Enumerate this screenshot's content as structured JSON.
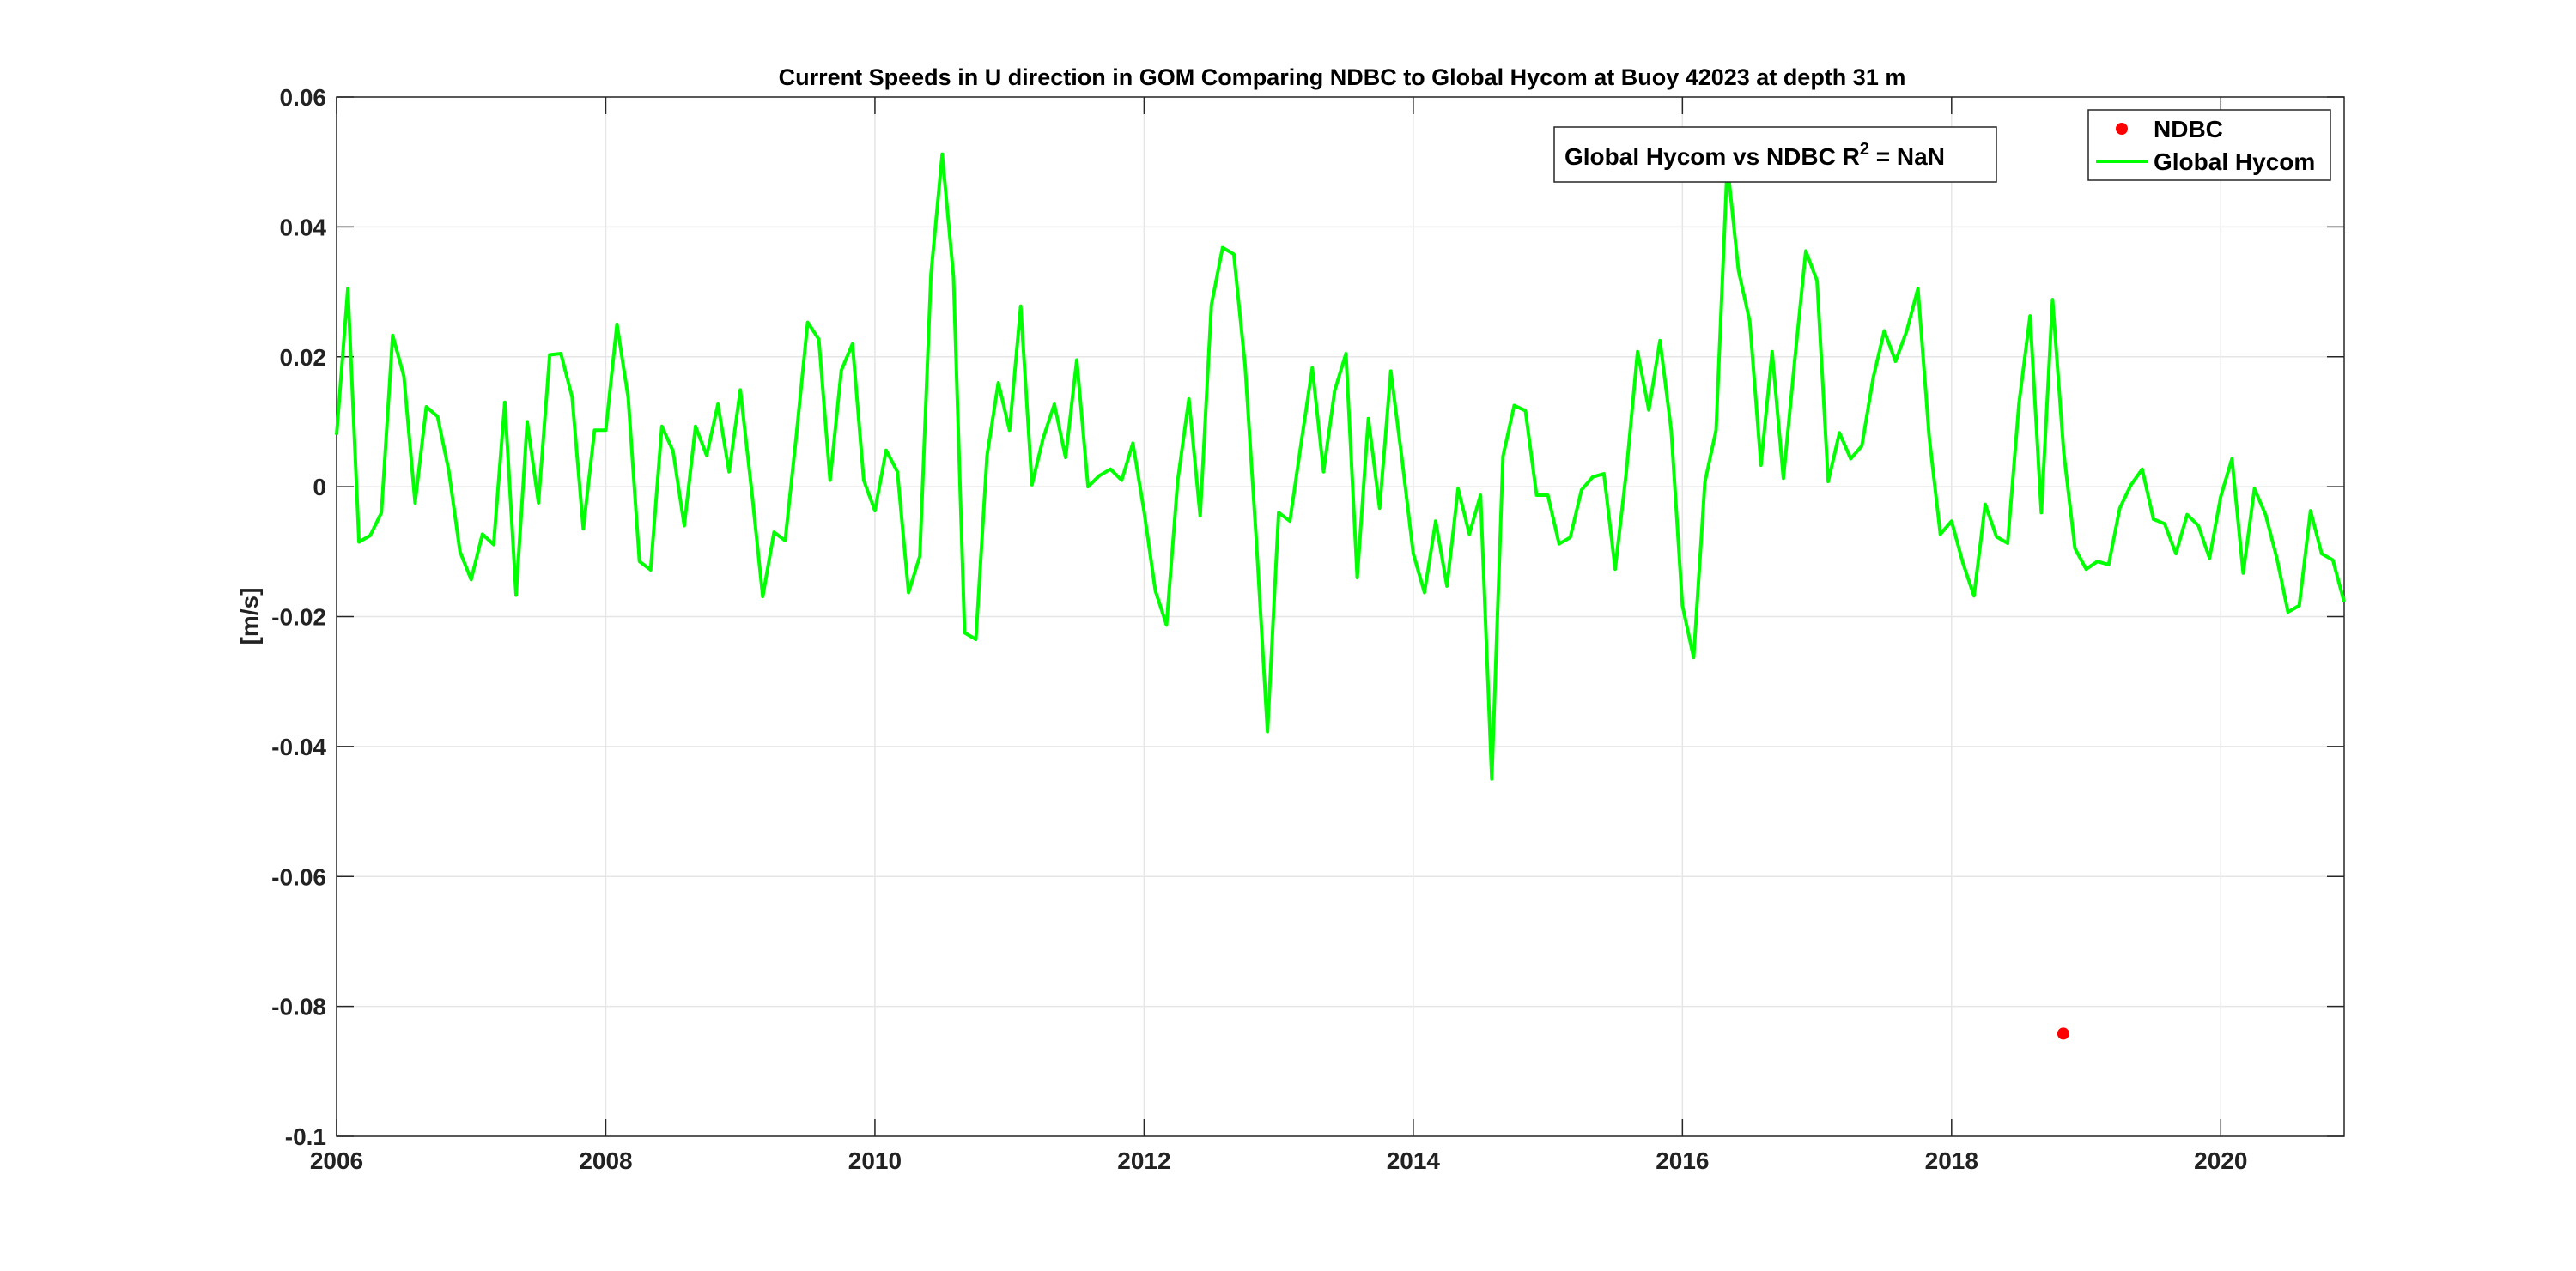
{
  "chart_data": {
    "type": "line",
    "title": "Current Speeds in U direction in GOM Comparing NDBC to Global Hycom at Buoy  42023  at depth  31 m",
    "xlabel": "",
    "ylabel": "[m/s]",
    "xlim": [
      2006,
      2020.917
    ],
    "ylim": [
      -0.1,
      0.06
    ],
    "grid": true,
    "x_ticks": [
      "2006",
      "2008",
      "2010",
      "2012",
      "2014",
      "2016",
      "2018",
      "2020"
    ],
    "y_ticks": [
      "-0.1",
      "-0.08",
      "-0.06",
      "-0.04",
      "-0.02",
      "0",
      "0.02",
      "0.04",
      "0.06"
    ],
    "legend_position": "top-right",
    "annotation": {
      "text": "Global Hycom vs NDBC R",
      "sup": "2",
      "suffix": " = NaN"
    },
    "series": [
      {
        "name": "NDBC",
        "type": "scatter",
        "color": "#ff0000",
        "points": [
          {
            "x": 2018.83,
            "y": -0.0842
          }
        ]
      },
      {
        "name": "Global Hycom",
        "type": "line",
        "color": "#00ff00",
        "start_year": 2006,
        "step": "monthly",
        "values": [
          0.008,
          0.0305,
          -0.0085,
          -0.0075,
          -0.004,
          0.0233,
          0.017,
          -0.0025,
          0.0123,
          0.0108,
          0.0025,
          -0.01,
          -0.0143,
          -0.0073,
          -0.0089,
          0.013,
          -0.0167,
          0.01,
          -0.0025,
          0.0203,
          0.0205,
          0.0138,
          -0.0065,
          0.0087,
          0.0087,
          0.025,
          0.0137,
          -0.0115,
          -0.0128,
          0.0093,
          0.0055,
          -0.006,
          0.0093,
          0.0048,
          0.0127,
          0.0023,
          0.0149,
          -0.0005,
          -0.0169,
          -0.007,
          -0.0083,
          0.008,
          0.0253,
          0.0227,
          0.001,
          0.0179,
          0.022,
          0.001,
          -0.0037,
          0.0056,
          0.0023,
          -0.0163,
          -0.0107,
          0.0327,
          0.0512,
          0.0324,
          -0.0225,
          -0.0235,
          0.0048,
          0.016,
          0.0087,
          0.0278,
          0.0003,
          0.0075,
          0.0127,
          0.0045,
          0.0195,
          0.0,
          0.0017,
          0.0027,
          0.001,
          0.0067,
          -0.0038,
          -0.016,
          -0.0213,
          0.001,
          0.0135,
          -0.0045,
          0.028,
          0.0368,
          0.0358,
          0.0187,
          -0.008,
          -0.0377,
          -0.004,
          -0.0053,
          0.0067,
          0.0183,
          0.0023,
          0.0148,
          0.0205,
          -0.014,
          0.0105,
          -0.0033,
          0.0178,
          0.0042,
          -0.0103,
          -0.0163,
          -0.0053,
          -0.0153,
          -0.0003,
          -0.0073,
          -0.0013,
          -0.045,
          0.0047,
          0.0125,
          0.0117,
          -0.0013,
          -0.0013,
          -0.0088,
          -0.0078,
          -0.0005,
          0.0015,
          0.002,
          -0.0127,
          0.0023,
          0.0208,
          0.0118,
          0.0225,
          0.0087,
          -0.0183,
          -0.0263,
          0.0007,
          0.0087,
          0.0497,
          0.0333,
          0.0255,
          0.0033,
          0.0208,
          0.0013,
          0.0193,
          0.0363,
          0.0317,
          0.0008,
          0.0083,
          0.0043,
          0.0063,
          0.0167,
          0.024,
          0.0193,
          0.024,
          0.0305,
          0.0077,
          -0.0073,
          -0.0053,
          -0.0117,
          -0.0168,
          -0.0027,
          -0.0077,
          -0.0087,
          0.0127,
          0.0263,
          -0.004,
          0.0288,
          0.0053,
          -0.0095,
          -0.0127,
          -0.0115,
          -0.012,
          -0.0033,
          0.0003,
          0.0027,
          -0.005,
          -0.0057,
          -0.0103,
          -0.0043,
          -0.006,
          -0.011,
          -0.0015,
          0.0043,
          -0.0133,
          -0.0003,
          -0.0043,
          -0.011,
          -0.0193,
          -0.0183,
          -0.0037,
          -0.0103,
          -0.0113,
          -0.0177
        ]
      }
    ]
  }
}
